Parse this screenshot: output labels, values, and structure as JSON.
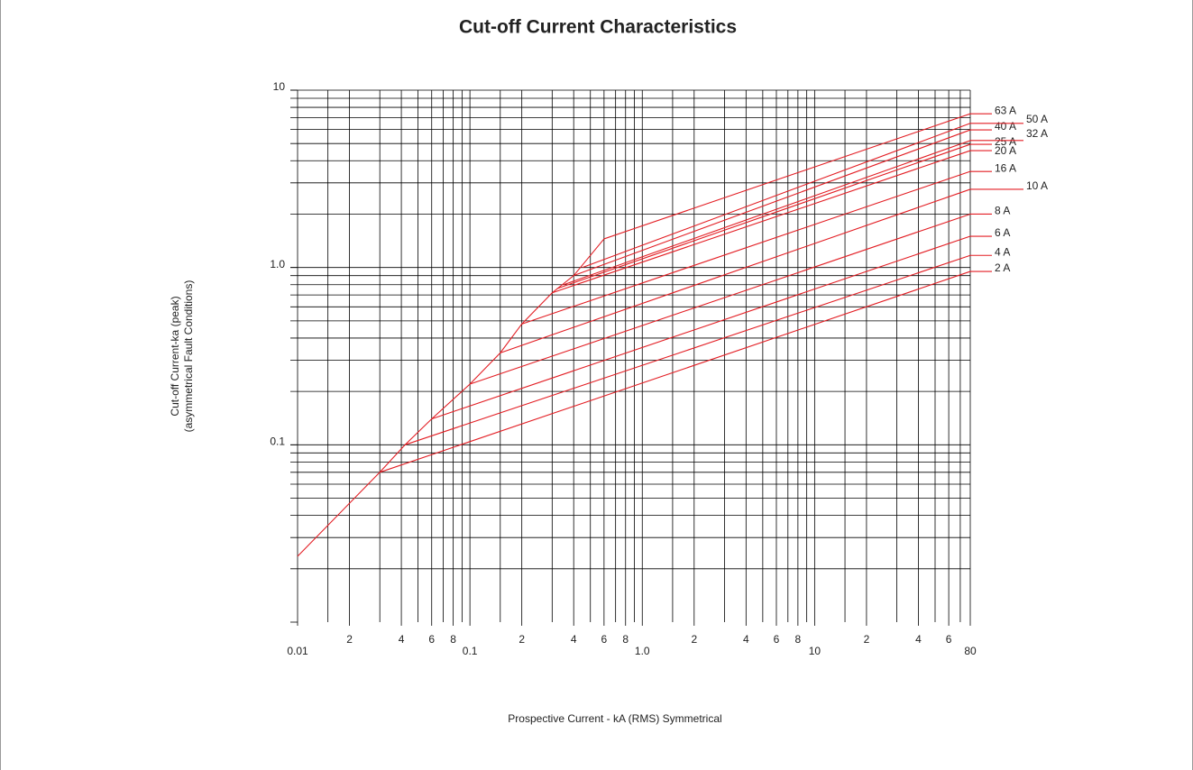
{
  "chart_data": {
    "type": "line",
    "title": "Cut-off Current Characteristics",
    "x_label": "Prospective Current - kA (RMS) Symmetrical",
    "y_label": [
      "Cut-off Current-ka (peak)",
      "(asymmetrical Fault Conditions)"
    ],
    "log_x": true,
    "log_y": true,
    "grid": true,
    "xlim": [
      0.01,
      80
    ],
    "ylim": [
      0.01,
      10
    ],
    "xticks": [
      {
        "value": 0.01,
        "label": "0.01"
      },
      {
        "value": 0.02,
        "label": "2"
      },
      {
        "value": 0.04,
        "label": "4"
      },
      {
        "value": 0.06,
        "label": "6"
      },
      {
        "value": 0.08,
        "label": "8"
      },
      {
        "value": 0.1,
        "label": "0.1"
      },
      {
        "value": 0.2,
        "label": "2"
      },
      {
        "value": 0.4,
        "label": "4"
      },
      {
        "value": 0.6,
        "label": "6"
      },
      {
        "value": 0.8,
        "label": "8"
      },
      {
        "value": 1,
        "label": "1.0"
      },
      {
        "value": 2,
        "label": "2"
      },
      {
        "value": 4,
        "label": "4"
      },
      {
        "value": 6,
        "label": "6"
      },
      {
        "value": 8,
        "label": "8"
      },
      10,
      {
        "value": 20,
        "label": "2"
      },
      {
        "value": 40,
        "label": "4"
      },
      {
        "value": 60,
        "label": "6"
      },
      80
    ],
    "xgrid": [
      0.01,
      0.015,
      0.02,
      0.03,
      0.04,
      0.05,
      0.06,
      0.07,
      0.08,
      0.09,
      0.1,
      0.15,
      0.2,
      0.3,
      0.4,
      0.5,
      0.6,
      0.7,
      0.8,
      0.9,
      1,
      1.5,
      2,
      3,
      4,
      5,
      6,
      7,
      8,
      9,
      10,
      15,
      20,
      30,
      40,
      50,
      60,
      70,
      80
    ],
    "yticks": [
      0.1,
      {
        "value": 1,
        "label": "1.0"
      },
      10
    ],
    "ygrid": [
      0.02,
      0.03,
      0.04,
      0.05,
      0.06,
      0.07,
      0.08,
      0.09,
      0.1,
      0.2,
      0.3,
      0.4,
      0.5,
      0.6,
      0.7,
      0.8,
      0.9,
      1,
      2,
      3,
      4,
      5,
      6,
      7,
      8,
      9,
      10
    ],
    "color": "#e31e24",
    "series": [
      {
        "x": [
          0.01,
          0.03,
          0.042,
          0.06,
          0.1,
          0.15,
          0.2,
          0.3,
          0.4,
          0.6
        ],
        "values": [
          0.0235,
          0.07,
          0.1,
          0.14,
          0.22,
          0.33,
          0.48,
          0.72,
          0.9,
          1.45
        ]
      },
      {
        "name": "2 A",
        "x": [
          0.03,
          80
        ],
        "values": [
          0.07,
          0.95
        ]
      },
      {
        "name": "4 A",
        "x": [
          0.042,
          80
        ],
        "values": [
          0.1,
          1.17
        ]
      },
      {
        "name": "6 A",
        "x": [
          0.06,
          80
        ],
        "values": [
          0.14,
          1.5
        ]
      },
      {
        "name": "8 A",
        "x": [
          0.1,
          80
        ],
        "values": [
          0.22,
          2.0
        ]
      },
      {
        "name": "10 A",
        "x": [
          0.15,
          80
        ],
        "values": [
          0.33,
          2.76
        ]
      },
      {
        "name": "16 A",
        "x": [
          0.2,
          80
        ],
        "values": [
          0.48,
          3.48
        ]
      },
      {
        "name": "20 A",
        "x": [
          0.3,
          80
        ],
        "values": [
          0.72,
          4.56
        ]
      },
      {
        "name": "25 A",
        "x": [
          0.32,
          80
        ],
        "values": [
          0.76,
          4.95
        ]
      },
      {
        "name": "32 A",
        "x": [
          0.35,
          80
        ],
        "values": [
          0.8,
          5.2
        ]
      },
      {
        "name": "40 A",
        "x": [
          0.4,
          80
        ],
        "values": [
          0.9,
          5.97
        ]
      },
      {
        "name": "50 A",
        "x": [
          0.45,
          80
        ],
        "values": [
          1.0,
          6.5
        ]
      },
      {
        "name": "63 A",
        "x": [
          0.6,
          80
        ],
        "values": [
          1.45,
          7.36
        ]
      }
    ]
  }
}
